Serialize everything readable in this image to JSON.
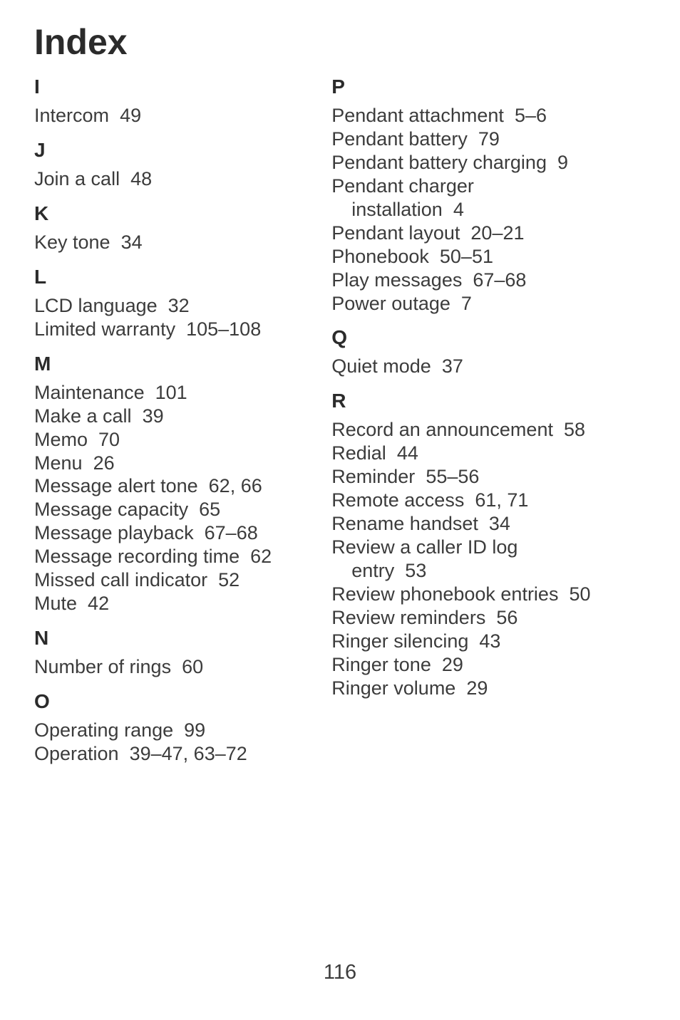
{
  "page_title": "Index",
  "page_number": "116",
  "columns": [
    {
      "sections": [
        {
          "letter": "I",
          "entries": [
            {
              "term": "Intercom",
              "pages": "49"
            }
          ]
        },
        {
          "letter": "J",
          "entries": [
            {
              "term": "Join a call",
              "pages": "48"
            }
          ]
        },
        {
          "letter": "K",
          "entries": [
            {
              "term": "Key tone",
              "pages": "34"
            }
          ]
        },
        {
          "letter": "L",
          "entries": [
            {
              "term": "LCD language",
              "pages": "32"
            },
            {
              "term": "Limited warranty",
              "pages": "105–108"
            }
          ]
        },
        {
          "letter": "M",
          "entries": [
            {
              "term": "Maintenance",
              "pages": "101"
            },
            {
              "term": "Make a call",
              "pages": "39"
            },
            {
              "term": "Memo",
              "pages": "70"
            },
            {
              "term": "Menu",
              "pages": "26"
            },
            {
              "term": "Message alert tone",
              "pages": "62, 66"
            },
            {
              "term": "Message capacity",
              "pages": "65"
            },
            {
              "term": "Message playback",
              "pages": "67–68"
            },
            {
              "term": "Message recording time",
              "pages": "62"
            },
            {
              "term": "Missed call indicator",
              "pages": "52"
            },
            {
              "term": "Mute",
              "pages": "42"
            }
          ]
        },
        {
          "letter": "N",
          "entries": [
            {
              "term": "Number of rings",
              "pages": "60"
            }
          ]
        },
        {
          "letter": "O",
          "entries": [
            {
              "term": "Operating range",
              "pages": "99"
            },
            {
              "term": "Operation",
              "pages": "39–47, 63–72"
            }
          ]
        }
      ]
    },
    {
      "sections": [
        {
          "letter": "P",
          "entries": [
            {
              "term": "Pendant attachment",
              "pages": "5–6"
            },
            {
              "term": "Pendant battery",
              "pages": "79"
            },
            {
              "term": "Pendant battery charging",
              "pages": "9"
            },
            {
              "term": "Pendant charger",
              "pages": ""
            },
            {
              "term": "installation",
              "pages": "4",
              "sub": true
            },
            {
              "term": "Pendant layout",
              "pages": "20–21"
            },
            {
              "term": "Phonebook",
              "pages": "50–51"
            },
            {
              "term": "Play messages",
              "pages": "67–68"
            },
            {
              "term": "Power outage",
              "pages": "7"
            }
          ]
        },
        {
          "letter": "Q",
          "entries": [
            {
              "term": "Quiet mode",
              "pages": "37"
            }
          ]
        },
        {
          "letter": "R",
          "entries": [
            {
              "term": "Record an announcement",
              "pages": "58"
            },
            {
              "term": "Redial",
              "pages": "44"
            },
            {
              "term": "Reminder",
              "pages": "55–56"
            },
            {
              "term": "Remote access",
              "pages": "61, 71"
            },
            {
              "term": "Rename handset",
              "pages": "34"
            },
            {
              "term": "Review a caller ID log",
              "pages": ""
            },
            {
              "term": "entry",
              "pages": "53",
              "sub": true
            },
            {
              "term": "Review phonebook entries",
              "pages": "50"
            },
            {
              "term": "Review reminders",
              "pages": "56"
            },
            {
              "term": "Ringer silencing",
              "pages": "43"
            },
            {
              "term": "Ringer tone",
              "pages": "29"
            },
            {
              "term": "Ringer volume",
              "pages": "29"
            }
          ]
        }
      ]
    }
  ]
}
